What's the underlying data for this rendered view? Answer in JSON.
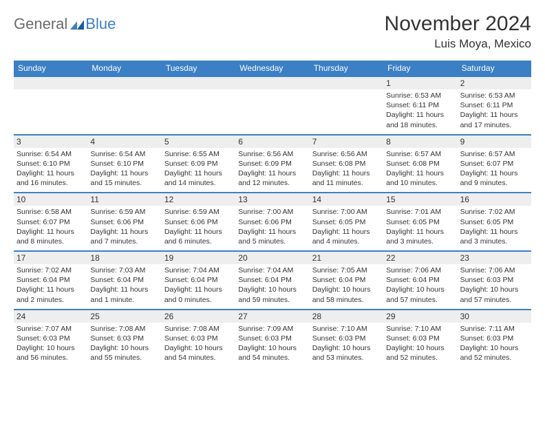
{
  "logo": {
    "text1": "General",
    "text2": "Blue"
  },
  "title": "November 2024",
  "location": "Luis Moya, Mexico",
  "weekdays": [
    "Sunday",
    "Monday",
    "Tuesday",
    "Wednesday",
    "Thursday",
    "Friday",
    "Saturday"
  ],
  "colors": {
    "header_bg": "#3b7fc4",
    "band_bg": "#eeeeee",
    "divider": "#3b7fc4"
  },
  "weeks": [
    [
      null,
      null,
      null,
      null,
      null,
      {
        "n": "1",
        "sr": "Sunrise: 6:53 AM",
        "ss": "Sunset: 6:11 PM",
        "d1": "Daylight: 11 hours",
        "d2": "and 18 minutes."
      },
      {
        "n": "2",
        "sr": "Sunrise: 6:53 AM",
        "ss": "Sunset: 6:11 PM",
        "d1": "Daylight: 11 hours",
        "d2": "and 17 minutes."
      }
    ],
    [
      {
        "n": "3",
        "sr": "Sunrise: 6:54 AM",
        "ss": "Sunset: 6:10 PM",
        "d1": "Daylight: 11 hours",
        "d2": "and 16 minutes."
      },
      {
        "n": "4",
        "sr": "Sunrise: 6:54 AM",
        "ss": "Sunset: 6:10 PM",
        "d1": "Daylight: 11 hours",
        "d2": "and 15 minutes."
      },
      {
        "n": "5",
        "sr": "Sunrise: 6:55 AM",
        "ss": "Sunset: 6:09 PM",
        "d1": "Daylight: 11 hours",
        "d2": "and 14 minutes."
      },
      {
        "n": "6",
        "sr": "Sunrise: 6:56 AM",
        "ss": "Sunset: 6:09 PM",
        "d1": "Daylight: 11 hours",
        "d2": "and 12 minutes."
      },
      {
        "n": "7",
        "sr": "Sunrise: 6:56 AM",
        "ss": "Sunset: 6:08 PM",
        "d1": "Daylight: 11 hours",
        "d2": "and 11 minutes."
      },
      {
        "n": "8",
        "sr": "Sunrise: 6:57 AM",
        "ss": "Sunset: 6:08 PM",
        "d1": "Daylight: 11 hours",
        "d2": "and 10 minutes."
      },
      {
        "n": "9",
        "sr": "Sunrise: 6:57 AM",
        "ss": "Sunset: 6:07 PM",
        "d1": "Daylight: 11 hours",
        "d2": "and 9 minutes."
      }
    ],
    [
      {
        "n": "10",
        "sr": "Sunrise: 6:58 AM",
        "ss": "Sunset: 6:07 PM",
        "d1": "Daylight: 11 hours",
        "d2": "and 8 minutes."
      },
      {
        "n": "11",
        "sr": "Sunrise: 6:59 AM",
        "ss": "Sunset: 6:06 PM",
        "d1": "Daylight: 11 hours",
        "d2": "and 7 minutes."
      },
      {
        "n": "12",
        "sr": "Sunrise: 6:59 AM",
        "ss": "Sunset: 6:06 PM",
        "d1": "Daylight: 11 hours",
        "d2": "and 6 minutes."
      },
      {
        "n": "13",
        "sr": "Sunrise: 7:00 AM",
        "ss": "Sunset: 6:06 PM",
        "d1": "Daylight: 11 hours",
        "d2": "and 5 minutes."
      },
      {
        "n": "14",
        "sr": "Sunrise: 7:00 AM",
        "ss": "Sunset: 6:05 PM",
        "d1": "Daylight: 11 hours",
        "d2": "and 4 minutes."
      },
      {
        "n": "15",
        "sr": "Sunrise: 7:01 AM",
        "ss": "Sunset: 6:05 PM",
        "d1": "Daylight: 11 hours",
        "d2": "and 3 minutes."
      },
      {
        "n": "16",
        "sr": "Sunrise: 7:02 AM",
        "ss": "Sunset: 6:05 PM",
        "d1": "Daylight: 11 hours",
        "d2": "and 3 minutes."
      }
    ],
    [
      {
        "n": "17",
        "sr": "Sunrise: 7:02 AM",
        "ss": "Sunset: 6:04 PM",
        "d1": "Daylight: 11 hours",
        "d2": "and 2 minutes."
      },
      {
        "n": "18",
        "sr": "Sunrise: 7:03 AM",
        "ss": "Sunset: 6:04 PM",
        "d1": "Daylight: 11 hours",
        "d2": "and 1 minute."
      },
      {
        "n": "19",
        "sr": "Sunrise: 7:04 AM",
        "ss": "Sunset: 6:04 PM",
        "d1": "Daylight: 11 hours",
        "d2": "and 0 minutes."
      },
      {
        "n": "20",
        "sr": "Sunrise: 7:04 AM",
        "ss": "Sunset: 6:04 PM",
        "d1": "Daylight: 10 hours",
        "d2": "and 59 minutes."
      },
      {
        "n": "21",
        "sr": "Sunrise: 7:05 AM",
        "ss": "Sunset: 6:04 PM",
        "d1": "Daylight: 10 hours",
        "d2": "and 58 minutes."
      },
      {
        "n": "22",
        "sr": "Sunrise: 7:06 AM",
        "ss": "Sunset: 6:04 PM",
        "d1": "Daylight: 10 hours",
        "d2": "and 57 minutes."
      },
      {
        "n": "23",
        "sr": "Sunrise: 7:06 AM",
        "ss": "Sunset: 6:03 PM",
        "d1": "Daylight: 10 hours",
        "d2": "and 57 minutes."
      }
    ],
    [
      {
        "n": "24",
        "sr": "Sunrise: 7:07 AM",
        "ss": "Sunset: 6:03 PM",
        "d1": "Daylight: 10 hours",
        "d2": "and 56 minutes."
      },
      {
        "n": "25",
        "sr": "Sunrise: 7:08 AM",
        "ss": "Sunset: 6:03 PM",
        "d1": "Daylight: 10 hours",
        "d2": "and 55 minutes."
      },
      {
        "n": "26",
        "sr": "Sunrise: 7:08 AM",
        "ss": "Sunset: 6:03 PM",
        "d1": "Daylight: 10 hours",
        "d2": "and 54 minutes."
      },
      {
        "n": "27",
        "sr": "Sunrise: 7:09 AM",
        "ss": "Sunset: 6:03 PM",
        "d1": "Daylight: 10 hours",
        "d2": "and 54 minutes."
      },
      {
        "n": "28",
        "sr": "Sunrise: 7:10 AM",
        "ss": "Sunset: 6:03 PM",
        "d1": "Daylight: 10 hours",
        "d2": "and 53 minutes."
      },
      {
        "n": "29",
        "sr": "Sunrise: 7:10 AM",
        "ss": "Sunset: 6:03 PM",
        "d1": "Daylight: 10 hours",
        "d2": "and 52 minutes."
      },
      {
        "n": "30",
        "sr": "Sunrise: 7:11 AM",
        "ss": "Sunset: 6:03 PM",
        "d1": "Daylight: 10 hours",
        "d2": "and 52 minutes."
      }
    ]
  ]
}
